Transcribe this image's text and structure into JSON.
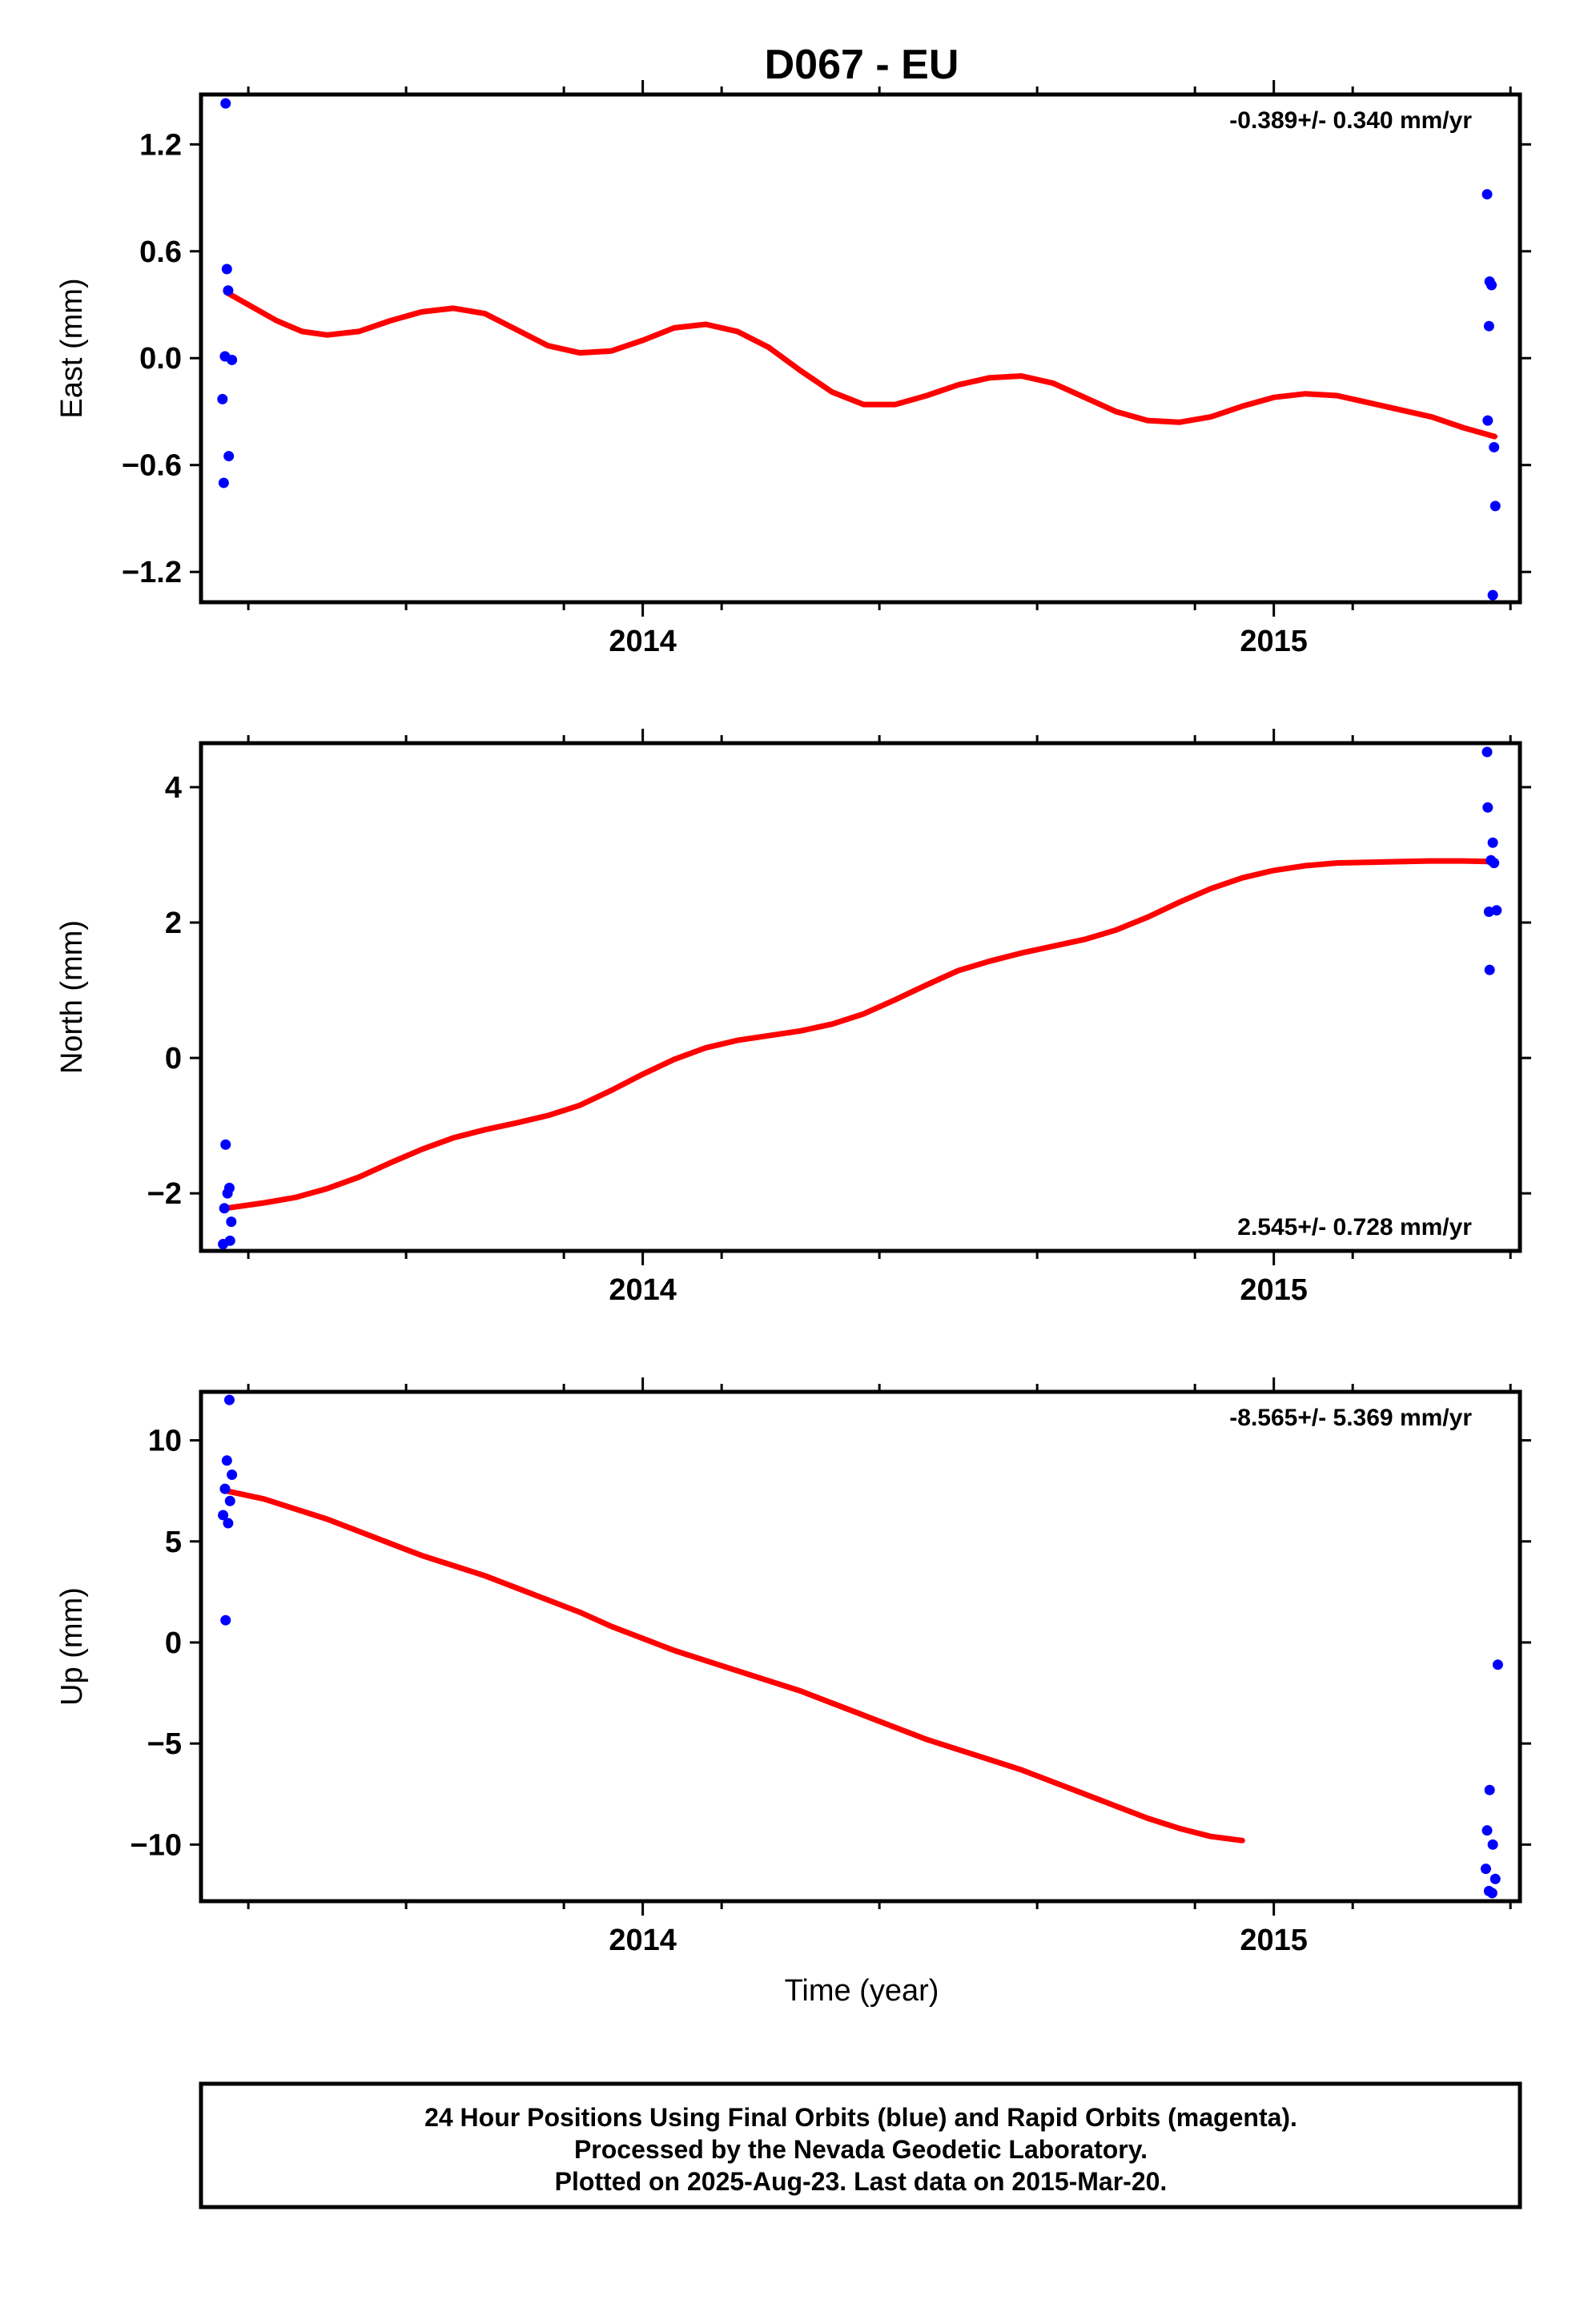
{
  "chart_data": {
    "type": "scatter",
    "title": "D067 - EU",
    "xlabel": "Time (year)",
    "xlim": [
      2013.3,
      2015.39
    ],
    "x_major_ticks": [
      2014,
      2015
    ],
    "x_minor_ticks": [
      2013.375,
      2013.625,
      2013.875,
      2014.125,
      2014.375,
      2014.625,
      2014.875,
      2015.125,
      2015.375
    ],
    "grid": false,
    "point_color": "#0000ff",
    "fit_color": "#ff0000",
    "panels": [
      {
        "name": "east",
        "ylabel": "East (mm)",
        "ylim": [
          -1.37,
          1.48
        ],
        "yticks": [
          -1.2,
          -0.6,
          0.0,
          0.6,
          1.2
        ],
        "ytick_labels": [
          "−1.2",
          "−0.6",
          "0.0",
          "0.6",
          "1.2"
        ],
        "xtick_labels": [
          "2014",
          "2015"
        ],
        "rate_text": "-0.389+/- 0.340 mm/yr",
        "rate_position": "top-right",
        "points": [
          [
            2013.339,
            1.43
          ],
          [
            2013.341,
            0.5
          ],
          [
            2013.343,
            0.38
          ],
          [
            2013.338,
            0.01
          ],
          [
            2013.349,
            -0.01
          ],
          [
            2013.334,
            -0.23
          ],
          [
            2013.344,
            -0.55
          ],
          [
            2013.336,
            -0.7
          ],
          [
            2015.338,
            0.92
          ],
          [
            2015.342,
            0.43
          ],
          [
            2015.345,
            0.41
          ],
          [
            2015.341,
            0.18
          ],
          [
            2015.339,
            -0.35
          ],
          [
            2015.349,
            -0.5
          ],
          [
            2015.351,
            -0.83
          ],
          [
            2015.347,
            -1.33
          ]
        ],
        "fit": [
          [
            2013.34,
            0.37
          ],
          [
            2013.38,
            0.29
          ],
          [
            2013.42,
            0.21
          ],
          [
            2013.46,
            0.15
          ],
          [
            2013.5,
            0.13
          ],
          [
            2013.55,
            0.15
          ],
          [
            2013.6,
            0.21
          ],
          [
            2013.65,
            0.26
          ],
          [
            2013.7,
            0.28
          ],
          [
            2013.75,
            0.25
          ],
          [
            2013.8,
            0.16
          ],
          [
            2013.85,
            0.07
          ],
          [
            2013.9,
            0.03
          ],
          [
            2013.95,
            0.04
          ],
          [
            2014.0,
            0.1
          ],
          [
            2014.05,
            0.17
          ],
          [
            2014.1,
            0.19
          ],
          [
            2014.15,
            0.15
          ],
          [
            2014.2,
            0.06
          ],
          [
            2014.25,
            -0.07
          ],
          [
            2014.3,
            -0.19
          ],
          [
            2014.35,
            -0.26
          ],
          [
            2014.4,
            -0.26
          ],
          [
            2014.45,
            -0.21
          ],
          [
            2014.5,
            -0.15
          ],
          [
            2014.55,
            -0.11
          ],
          [
            2014.6,
            -0.1
          ],
          [
            2014.65,
            -0.14
          ],
          [
            2014.7,
            -0.22
          ],
          [
            2014.75,
            -0.3
          ],
          [
            2014.8,
            -0.35
          ],
          [
            2014.85,
            -0.36
          ],
          [
            2014.9,
            -0.33
          ],
          [
            2014.95,
            -0.27
          ],
          [
            2015.0,
            -0.22
          ],
          [
            2015.05,
            -0.2
          ],
          [
            2015.1,
            -0.21
          ],
          [
            2015.15,
            -0.25
          ],
          [
            2015.2,
            -0.29
          ],
          [
            2015.25,
            -0.33
          ],
          [
            2015.3,
            -0.39
          ],
          [
            2015.35,
            -0.44
          ]
        ]
      },
      {
        "name": "north",
        "ylabel": "North (mm)",
        "ylim": [
          -2.85,
          4.65
        ],
        "yticks": [
          -2,
          0,
          2,
          4
        ],
        "ytick_labels": [
          "−2",
          "0",
          "2",
          "4"
        ],
        "xtick_labels": [
          "2014",
          "2015"
        ],
        "rate_text": "2.545+/- 0.728 mm/yr",
        "rate_position": "bottom-right",
        "points": [
          [
            2013.339,
            -1.28
          ],
          [
            2013.345,
            -1.92
          ],
          [
            2013.342,
            -2.0
          ],
          [
            2013.337,
            -2.22
          ],
          [
            2013.348,
            -2.42
          ],
          [
            2013.346,
            -2.7
          ],
          [
            2013.335,
            -2.75
          ],
          [
            2015.338,
            4.52
          ],
          [
            2015.339,
            3.7
          ],
          [
            2015.347,
            3.18
          ],
          [
            2015.344,
            2.92
          ],
          [
            2015.349,
            2.88
          ],
          [
            2015.341,
            2.16
          ],
          [
            2015.353,
            2.18
          ],
          [
            2015.342,
            1.3
          ]
        ],
        "fit": [
          [
            2013.34,
            -2.22
          ],
          [
            2013.4,
            -2.14
          ],
          [
            2013.45,
            -2.06
          ],
          [
            2013.5,
            -1.93
          ],
          [
            2013.55,
            -1.76
          ],
          [
            2013.6,
            -1.55
          ],
          [
            2013.65,
            -1.35
          ],
          [
            2013.7,
            -1.18
          ],
          [
            2013.75,
            -1.06
          ],
          [
            2013.8,
            -0.96
          ],
          [
            2013.85,
            -0.85
          ],
          [
            2013.9,
            -0.7
          ],
          [
            2013.95,
            -0.48
          ],
          [
            2014.0,
            -0.24
          ],
          [
            2014.05,
            -0.02
          ],
          [
            2014.1,
            0.15
          ],
          [
            2014.15,
            0.26
          ],
          [
            2014.2,
            0.33
          ],
          [
            2014.25,
            0.4
          ],
          [
            2014.3,
            0.5
          ],
          [
            2014.35,
            0.65
          ],
          [
            2014.4,
            0.86
          ],
          [
            2014.45,
            1.08
          ],
          [
            2014.5,
            1.29
          ],
          [
            2014.55,
            1.43
          ],
          [
            2014.6,
            1.55
          ],
          [
            2014.65,
            1.65
          ],
          [
            2014.7,
            1.75
          ],
          [
            2014.75,
            1.89
          ],
          [
            2014.8,
            2.08
          ],
          [
            2014.85,
            2.3
          ],
          [
            2014.9,
            2.5
          ],
          [
            2014.95,
            2.66
          ],
          [
            2015.0,
            2.77
          ],
          [
            2015.05,
            2.84
          ],
          [
            2015.1,
            2.88
          ],
          [
            2015.15,
            2.89
          ],
          [
            2015.2,
            2.9
          ],
          [
            2015.25,
            2.91
          ],
          [
            2015.3,
            2.91
          ],
          [
            2015.35,
            2.9
          ]
        ]
      },
      {
        "name": "up",
        "ylabel": "Up (mm)",
        "ylim": [
          -12.8,
          12.4
        ],
        "yticks": [
          -10,
          -5,
          0,
          5,
          10
        ],
        "ytick_labels": [
          "−10",
          "−5",
          "0",
          "5",
          "10"
        ],
        "xtick_labels": [
          "2014",
          "2015"
        ],
        "rate_text": "-8.565+/- 5.369 mm/yr",
        "rate_position": "top-right",
        "points": [
          [
            2013.345,
            12.0
          ],
          [
            2013.341,
            9.0
          ],
          [
            2013.349,
            8.3
          ],
          [
            2013.338,
            7.6
          ],
          [
            2013.346,
            7.0
          ],
          [
            2013.335,
            6.3
          ],
          [
            2013.343,
            5.9
          ],
          [
            2013.339,
            1.1
          ],
          [
            2015.355,
            -1.1
          ],
          [
            2015.342,
            -7.3
          ],
          [
            2015.338,
            -9.3
          ],
          [
            2015.347,
            -10.0
          ],
          [
            2015.336,
            -11.2
          ],
          [
            2015.351,
            -11.7
          ],
          [
            2015.341,
            -12.3
          ],
          [
            2015.346,
            -12.4
          ]
        ],
        "fit": [
          [
            2013.34,
            7.5
          ],
          [
            2013.4,
            7.1
          ],
          [
            2013.45,
            6.6
          ],
          [
            2013.5,
            6.1
          ],
          [
            2013.55,
            5.5
          ],
          [
            2013.6,
            4.9
          ],
          [
            2013.65,
            4.3
          ],
          [
            2013.7,
            3.8
          ],
          [
            2013.75,
            3.3
          ],
          [
            2013.8,
            2.7
          ],
          [
            2013.85,
            2.1
          ],
          [
            2013.9,
            1.5
          ],
          [
            2013.95,
            0.8
          ],
          [
            2014.0,
            0.2
          ],
          [
            2014.05,
            -0.4
          ],
          [
            2014.1,
            -0.9
          ],
          [
            2014.15,
            -1.4
          ],
          [
            2014.2,
            -1.9
          ],
          [
            2014.25,
            -2.4
          ],
          [
            2014.3,
            -3.0
          ],
          [
            2014.35,
            -3.6
          ],
          [
            2014.4,
            -4.2
          ],
          [
            2014.45,
            -4.8
          ],
          [
            2014.5,
            -5.3
          ],
          [
            2014.55,
            -5.8
          ],
          [
            2014.6,
            -6.3
          ],
          [
            2014.65,
            -6.9
          ],
          [
            2014.7,
            -7.5
          ],
          [
            2014.75,
            -8.1
          ],
          [
            2014.8,
            -8.7
          ],
          [
            2014.85,
            -9.2
          ],
          [
            2014.9,
            -9.6
          ],
          [
            2014.95,
            -9.8
          ]
        ]
      }
    ]
  },
  "footer": {
    "lines": [
      "24 Hour Positions Using Final Orbits (blue) and Rapid Orbits (magenta).",
      "Processed by the Nevada Geodetic Laboratory.",
      "Plotted on 2025-Aug-23. Last data on 2015-Mar-20."
    ]
  }
}
